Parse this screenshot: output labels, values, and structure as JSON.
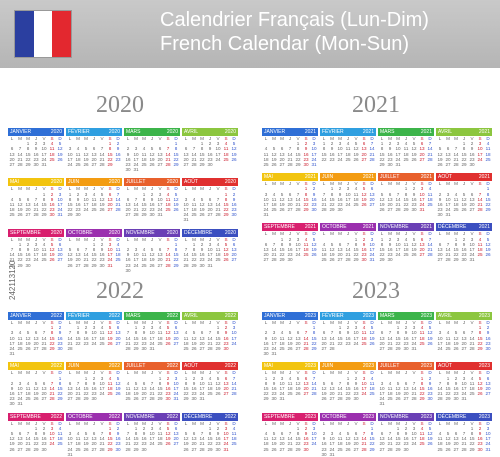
{
  "header": {
    "title_fr": "Calendrier Français (Lun-Dim)",
    "title_en": "French Calendar (Mon-Sun)"
  },
  "watermark": "242113120",
  "weekday_headers": [
    "L",
    "M",
    "M",
    "J",
    "V",
    "S",
    "D"
  ],
  "month_names": [
    "JANVIER",
    "FÉVRIER",
    "MARS",
    "AVRIL",
    "MAI",
    "JUIN",
    "JUILLET",
    "AOÛT",
    "SEPTEMBRE",
    "OCTOBRE",
    "NOVEMBRE",
    "DÉCEMBRE"
  ],
  "month_colors": [
    "#2f6fd6",
    "#2f9fe0",
    "#3cb44a",
    "#8cc63f",
    "#f2c40f",
    "#f39c12",
    "#e8602c",
    "#e0302f",
    "#d81f6e",
    "#9b2fae",
    "#6a3fb5",
    "#3b4fc0"
  ],
  "years": [
    {
      "year": "2020",
      "first_weekday": [
        2,
        5,
        6,
        2,
        4,
        0,
        2,
        5,
        1,
        3,
        6,
        1
      ],
      "days": [
        31,
        29,
        31,
        30,
        31,
        30,
        31,
        31,
        30,
        31,
        30,
        31
      ]
    },
    {
      "year": "2021",
      "first_weekday": [
        4,
        0,
        0,
        3,
        5,
        1,
        3,
        6,
        2,
        4,
        0,
        2
      ],
      "days": [
        31,
        28,
        31,
        30,
        31,
        30,
        31,
        31,
        30,
        31,
        30,
        31
      ]
    },
    {
      "year": "2022",
      "first_weekday": [
        5,
        1,
        1,
        4,
        6,
        2,
        4,
        0,
        3,
        5,
        1,
        3
      ],
      "days": [
        31,
        28,
        31,
        30,
        31,
        30,
        31,
        31,
        30,
        31,
        30,
        31
      ]
    },
    {
      "year": "2023",
      "first_weekday": [
        6,
        2,
        2,
        5,
        0,
        3,
        5,
        1,
        4,
        6,
        2,
        4
      ],
      "days": [
        31,
        28,
        31,
        30,
        31,
        30,
        31,
        31,
        30,
        31,
        30,
        31
      ]
    }
  ]
}
